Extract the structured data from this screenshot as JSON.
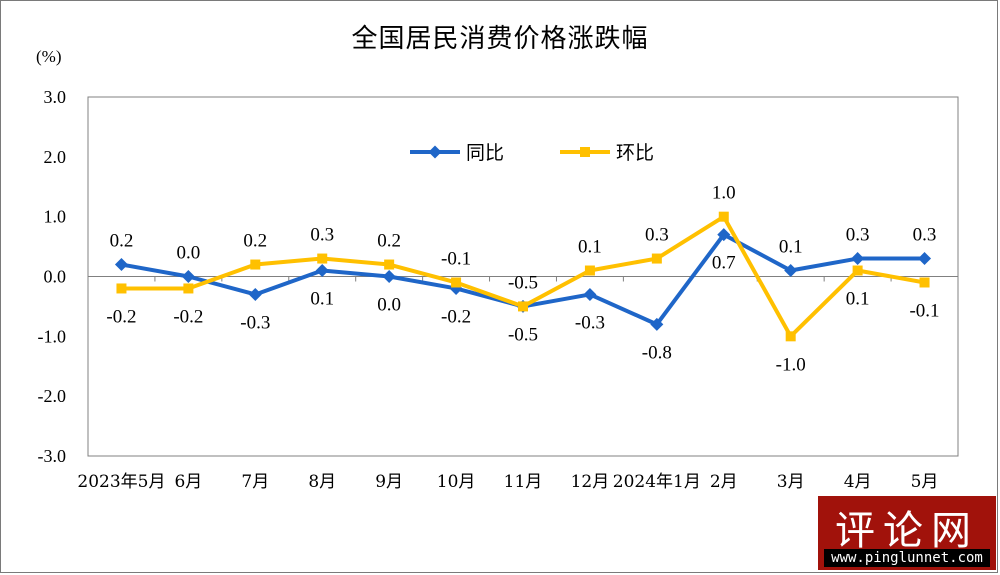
{
  "chart_data": {
    "type": "line",
    "title": "全国居民消费价格涨跌幅",
    "unit": "(%)",
    "categories": [
      "2023年5月",
      "6月",
      "7月",
      "8月",
      "9月",
      "10月",
      "11月",
      "12月",
      "2024年1月",
      "2月",
      "3月",
      "4月",
      "5月"
    ],
    "y_ticks": [
      "3.0",
      "2.0",
      "1.0",
      "0.0",
      "-1.0",
      "-2.0",
      "-3.0"
    ],
    "ylim": [
      -3.0,
      3.0
    ],
    "legend_position": "top-center",
    "series": [
      {
        "name": "同比",
        "color": "#1f66c8",
        "marker": "diamond",
        "values": [
          0.2,
          0.0,
          -0.3,
          0.1,
          0.0,
          -0.2,
          -0.5,
          -0.3,
          -0.8,
          0.7,
          0.1,
          0.3,
          0.3
        ],
        "labels": [
          "0.2",
          "0.0",
          "-0.3",
          "0.1",
          "0.0",
          "-0.2",
          "-0.5",
          "-0.3",
          "-0.8",
          "0.7",
          "0.1",
          "0.3",
          "0.3"
        ]
      },
      {
        "name": "环比",
        "color": "#ffc000",
        "marker": "square",
        "values": [
          -0.2,
          -0.2,
          0.2,
          0.3,
          0.2,
          -0.1,
          -0.5,
          0.1,
          0.3,
          1.0,
          -1.0,
          0.1,
          -0.1
        ],
        "labels": [
          "-0.2",
          "-0.2",
          "0.2",
          "0.3",
          "0.2",
          "-0.1",
          "-0.5",
          "0.1",
          "0.3",
          "1.0",
          "-1.0",
          "0.1",
          "-0.1"
        ]
      }
    ]
  },
  "watermark": {
    "text": "评论网",
    "url": "www.pinglunnet.com"
  }
}
